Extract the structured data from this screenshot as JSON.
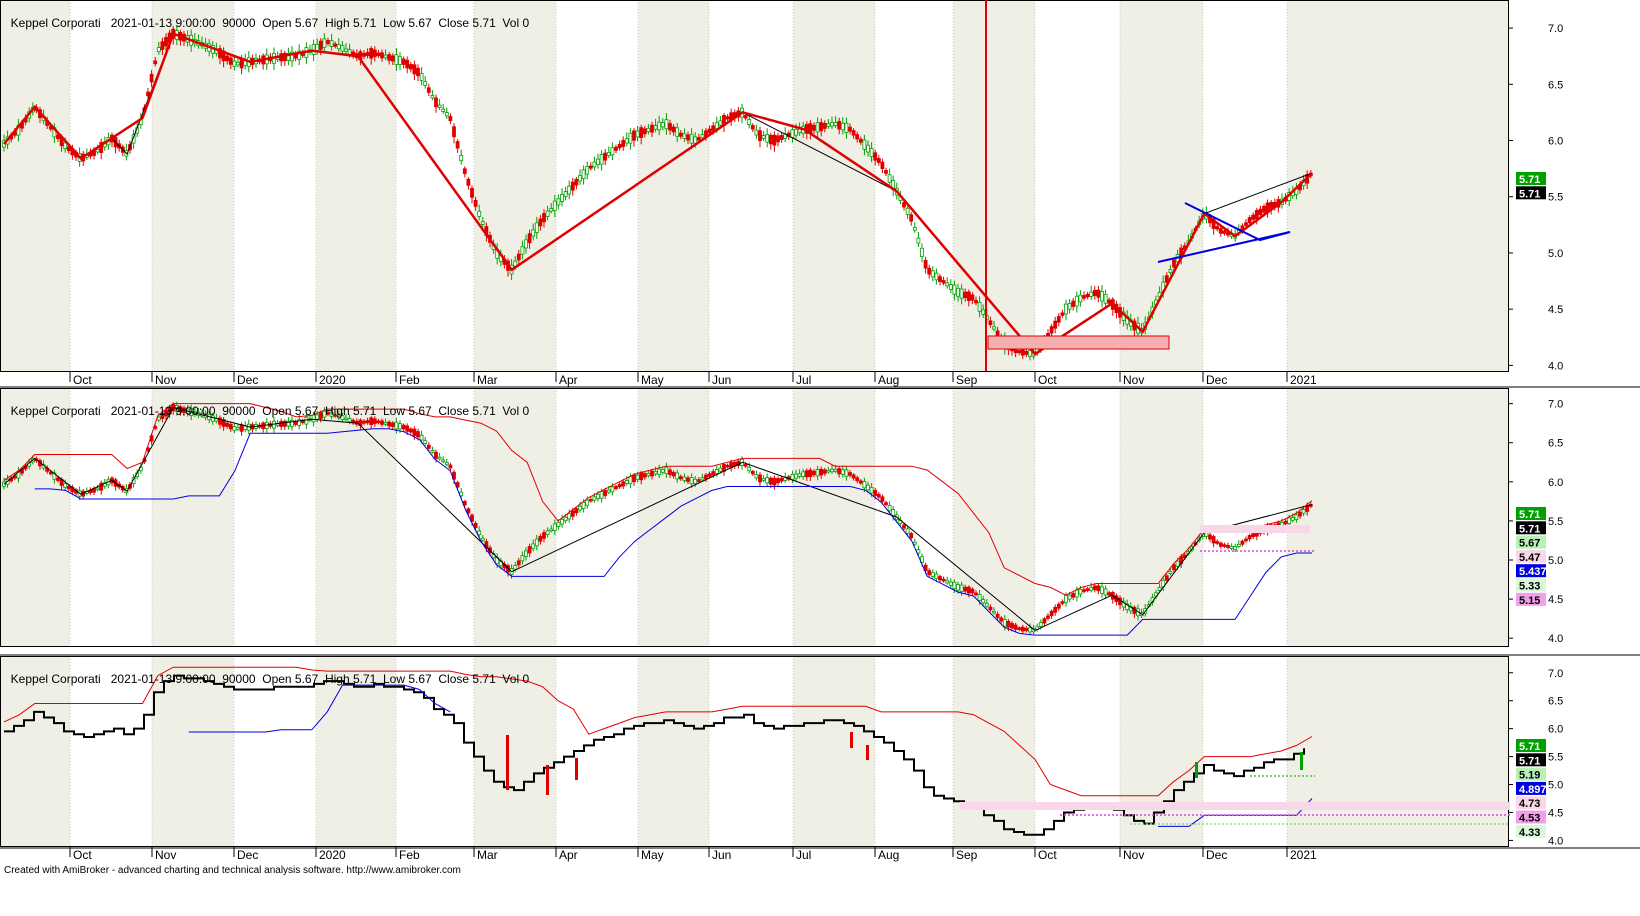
{
  "header": {
    "symbol": "Keppel Corporati",
    "datetime": "2021-01-13 9:00:00",
    "interval": "90000",
    "open": "Open 5.67",
    "high": "High 5.71",
    "low": "Low 5.67",
    "close": "Close 5.71",
    "vol": "Vol 0"
  },
  "footer": "Created with AmiBroker - advanced charting and technical analysis software. http://www.amibroker.com",
  "colors": {
    "up": "#00a000",
    "down": "#e00000",
    "zigzag": "#000000",
    "trend_red": "#e00000",
    "blue_line": "#0000e0",
    "band_even": "#ffffff",
    "band_odd": "#f0efe6",
    "cursor": "#e00000"
  },
  "chart_data": [
    {
      "type": "candlestick",
      "title": "Keppel Corporati",
      "x_labels": [
        "Oct",
        "Nov",
        "Dec",
        "2020",
        "Feb",
        "Mar",
        "Apr",
        "May",
        "Jun",
        "Jul",
        "Aug",
        "Sep",
        "Oct",
        "Nov",
        "Dec",
        "2021"
      ],
      "y_ticks": [
        "4.0",
        "4.5",
        "5.0",
        "5.5",
        "6.0",
        "6.5",
        "7.0"
      ],
      "ylim": [
        3.95,
        7.25
      ],
      "price_badges": [
        {
          "value": "5.71",
          "color": "#00a000"
        },
        {
          "value": "5.71",
          "color": "#000000"
        }
      ],
      "series": [
        {
          "name": "price",
          "values": [
            5.97,
            6.1,
            6.3,
            6.12,
            5.95,
            5.84,
            5.9,
            6.02,
            5.88,
            6.2,
            6.8,
            6.95,
            6.9,
            6.85,
            6.78,
            6.68,
            6.7,
            6.72,
            6.74,
            6.75,
            6.8,
            6.88,
            6.82,
            6.75,
            6.78,
            6.74,
            6.7,
            6.6,
            6.35,
            6.2,
            5.7,
            5.3,
            5.0,
            4.85,
            5.1,
            5.3,
            5.45,
            5.6,
            5.75,
            5.85,
            5.95,
            6.05,
            6.1,
            6.15,
            6.05,
            6.0,
            6.1,
            6.2,
            6.25,
            6.05,
            6.0,
            6.05,
            6.1,
            6.12,
            6.15,
            6.1,
            5.95,
            5.8,
            5.55,
            5.3,
            4.85,
            4.75,
            4.65,
            4.6,
            4.4,
            4.2,
            4.12,
            4.1,
            4.3,
            4.5,
            4.6,
            4.65,
            4.55,
            4.4,
            4.3,
            4.6,
            4.9,
            5.1,
            5.35,
            5.2,
            5.15,
            5.3,
            5.4,
            5.45,
            5.55,
            5.71
          ]
        }
      ]
    },
    {
      "type": "candlestick",
      "title": "Keppel Corporati",
      "x_labels": [
        "Oct",
        "Nov",
        "Dec",
        "2020",
        "Feb",
        "Mar",
        "Apr",
        "May",
        "Jun",
        "Jul",
        "Aug",
        "Sep",
        "Oct",
        "Nov",
        "Dec",
        "2021"
      ],
      "y_ticks": [
        "4.0",
        "4.5",
        "5.0",
        "5.5",
        "6.0",
        "6.5",
        "7.0"
      ],
      "ylim": [
        3.9,
        7.2
      ],
      "price_badges": [
        {
          "value": "5.71",
          "color": "#00a000"
        },
        {
          "value": "5.71",
          "color": "#000000"
        },
        {
          "value": "5.67",
          "color": "#b8f0b8"
        },
        {
          "value": "5.47",
          "color": "#f8d8e8"
        },
        {
          "value": "5.43705",
          "color": "#0000e0"
        },
        {
          "value": "5.33",
          "color": "#d8f8d8"
        },
        {
          "value": "5.15",
          "color": "#f0a0e8"
        }
      ]
    },
    {
      "type": "line",
      "title": "Keppel Corporati",
      "x_labels": [
        "Oct",
        "Nov",
        "Dec",
        "2020",
        "Feb",
        "Mar",
        "Apr",
        "May",
        "Jun",
        "Jul",
        "Aug",
        "Sep",
        "Oct",
        "Nov",
        "Dec",
        "2021"
      ],
      "y_ticks": [
        "4.0",
        "4.5",
        "5.0",
        "5.5",
        "6.0",
        "6.5",
        "7.0"
      ],
      "ylim": [
        3.9,
        7.3
      ],
      "price_badges": [
        {
          "value": "5.71",
          "color": "#00a000"
        },
        {
          "value": "5.71",
          "color": "#000000"
        },
        {
          "value": "5.19",
          "color": "#b8f0b8"
        },
        {
          "value": "4.89768",
          "color": "#0000e0"
        },
        {
          "value": "4.73",
          "color": "#f8d8e8"
        },
        {
          "value": "4.53",
          "color": "#f0a0e8"
        },
        {
          "value": "4.33",
          "color": "#d8f8d8"
        }
      ]
    }
  ]
}
